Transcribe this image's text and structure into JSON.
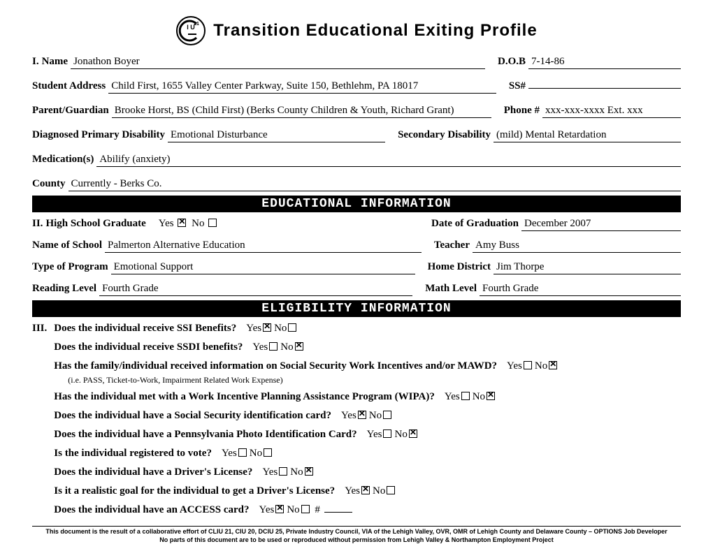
{
  "title": "Transition Educational Exiting Profile",
  "labels": {
    "name": "Name",
    "dob": "D.O.B",
    "address": "Student Address",
    "ss": "SS#",
    "parent": "Parent/Guardian",
    "phone": "Phone #",
    "primary": "Diagnosed Primary Disability",
    "secondary": "Secondary Disability",
    "meds": "Medication(s)",
    "county": "County",
    "hs_grad": "High School Graduate",
    "grad_date": "Date of Graduation",
    "school_name": "Name of School",
    "teacher": "Teacher",
    "program_type": "Type of Program",
    "home_district": "Home District",
    "reading": "Reading Level",
    "math": "Math Level"
  },
  "roman": {
    "I": "I.",
    "II": "II.",
    "III": "III."
  },
  "values": {
    "name": "Jonathon Boyer",
    "dob": "7-14-86",
    "address": "Child First, 1655 Valley Center Parkway, Suite 150, Bethlehm, PA 18017",
    "ss": "",
    "parent": "Brooke Horst, BS (Child First) (Berks County Children & Youth, Richard Grant)",
    "phone": "xxx-xxx-xxxx Ext. xxx",
    "primary": "Emotional Disturbance",
    "secondary": "(mild) Mental Retardation",
    "meds": "Abilify (anxiety)",
    "county": "Currently - Berks Co.",
    "grad_date": "December 2007",
    "school_name": "Palmerton Alternative Education",
    "teacher": "Amy Buss",
    "program_type": "Emotional Support",
    "home_district": "Jim Thorpe",
    "reading": "Fourth Grade",
    "math": "Fourth Grade"
  },
  "banners": {
    "edu": "EDUCATIONAL INFORMATION",
    "elig": "ELIGIBILITY INFORMATION"
  },
  "yn": {
    "yes": "Yes",
    "no": "No"
  },
  "hs_grad": {
    "yes": true,
    "no": false
  },
  "elig": [
    {
      "q": "Does the individual receive SSI Benefits?",
      "yes": true,
      "no": false
    },
    {
      "q": "Does the individual receive SSDI benefits?",
      "yes": false,
      "no": true
    },
    {
      "q": "Has the family/individual received information on Social Security Work Incentives and/or MAWD?",
      "yes": false,
      "no": true,
      "note": "(i.e. PASS, Ticket-to-Work, Impairment Related Work Expense)"
    },
    {
      "q": "Has the individual met with a Work Incentive Planning Assistance Program (WIPA)?",
      "yes": false,
      "no": true
    },
    {
      "q": "Does the individual have a Social Security identification card?",
      "yes": true,
      "no": false
    },
    {
      "q": "Does the individual have a Pennsylvania Photo Identification Card?",
      "yes": false,
      "no": true
    },
    {
      "q": "Is the individual registered to vote?",
      "yes": false,
      "no": false
    },
    {
      "q": "Does the individual have a Driver's License?",
      "yes": false,
      "no": true
    },
    {
      "q": "Is it a realistic goal for the individual to get a Driver's License?",
      "yes": true,
      "no": false
    },
    {
      "q": "Does the individual have an ACCESS card?",
      "yes": true,
      "no": false,
      "extra_num": true
    }
  ],
  "footer": {
    "l1": "This document is the result of a collaborative effort of CLIU 21, CIU 20, DCIU 25, Private Industry Council, VIA of the Lehigh Valley, OVR, OMR of Lehigh County and Delaware County – OPTIONS Job Developer",
    "l2": "No parts of this document are to be used or reproduced without permission from Lehigh Valley & Northampton Employment Project"
  }
}
